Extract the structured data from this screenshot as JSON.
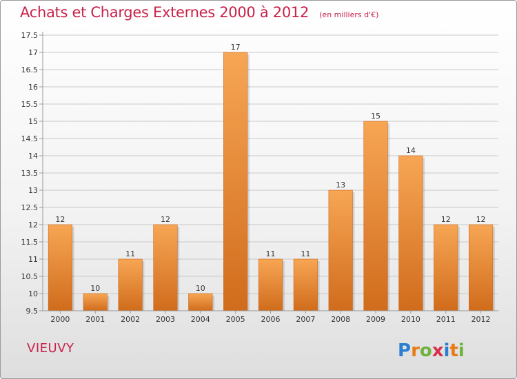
{
  "header": {
    "title": "Achats et Charges Externes 2000 à 2012",
    "subtitle": "(en milliers d'€)"
  },
  "footer": {
    "commune": "VIEUVY",
    "brand": "Proxiti"
  },
  "colors": {
    "title": "#c8224a",
    "bar_top": "#f7a654",
    "bar_bottom": "#d06c1c",
    "grid": "#c9c9c9",
    "axis": "#9a9a9a",
    "text": "#333333"
  },
  "chart_data": {
    "type": "bar",
    "title": "Achats et Charges Externes 2000 à 2012",
    "subtitle": "(en milliers d'€)",
    "categories": [
      "2000",
      "2001",
      "2002",
      "2003",
      "2004",
      "2005",
      "2006",
      "2007",
      "2008",
      "2009",
      "2010",
      "2011",
      "2012"
    ],
    "values": [
      12,
      10,
      11,
      12,
      10,
      17,
      11,
      11,
      13,
      15,
      14,
      12,
      12
    ],
    "data_labels": [
      "12",
      "10",
      "11",
      "12",
      "10",
      "17",
      "11",
      "11",
      "13",
      "15",
      "14",
      "12",
      "12"
    ],
    "ylim": [
      9.5,
      17.5
    ],
    "yticks": [
      9.5,
      10,
      10.5,
      11,
      11.5,
      12,
      12.5,
      13,
      13.5,
      14,
      14.5,
      15,
      15.5,
      16,
      16.5,
      17,
      17.5
    ],
    "ytick_labels": [
      "9.5",
      "10",
      "10.5",
      "11",
      "11.5",
      "12",
      "12.5",
      "13",
      "13.5",
      "14",
      "14.5",
      "15",
      "15.5",
      "16",
      "16.5",
      "17",
      "17.5"
    ],
    "grid": "horizontal",
    "legend": "none"
  }
}
